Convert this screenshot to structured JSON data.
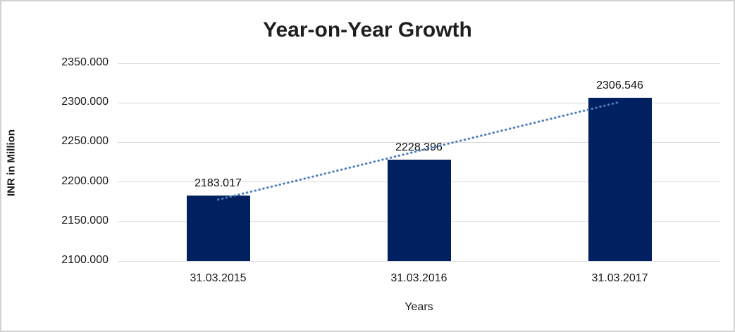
{
  "chart_data": {
    "type": "bar",
    "title": "Year-on-Year Growth",
    "categories": [
      "31.03.2015",
      "31.03.2016",
      "31.03.2017"
    ],
    "values": [
      2183.017,
      2228.396,
      2306.546
    ],
    "data_labels": [
      "2183.017",
      "2228.396",
      "2306.546"
    ],
    "xlabel": "Years",
    "ylabel": "INR in Million",
    "ylim": [
      2100,
      2350
    ],
    "ytick_step": 50,
    "ytick_labels": [
      "2100.000",
      "2150.000",
      "2200.000",
      "2250.000",
      "2300.000",
      "2350.000"
    ],
    "grid": true,
    "legend_position": "none",
    "bar_color": "#002060",
    "gridline_color": "#d9d9d9",
    "trendline": {
      "type": "linear",
      "style": "dotted",
      "color": "#4a7ebb"
    }
  }
}
